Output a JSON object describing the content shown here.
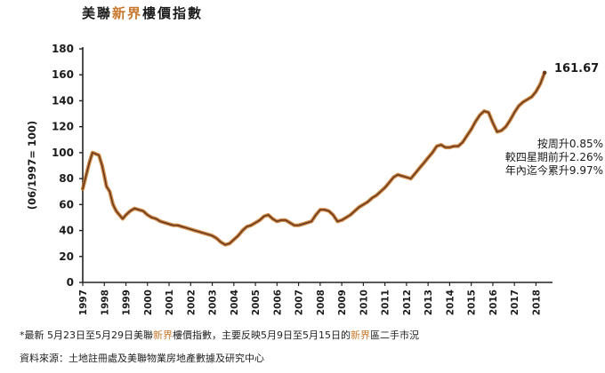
{
  "title": {
    "text_before": "美聯",
    "text_highlight": "新界",
    "text_after": "樓價指數"
  },
  "annotation": {
    "last_value": "161.67",
    "lines": [
      "按周升0.85%",
      "較四星期前升2.26%",
      "年內迄今累升9.97%"
    ]
  },
  "footnote": {
    "before": "*最新 5月23日至5月29日美聯",
    "highlight1": "新界",
    "middle": "樓價指數，主要反映5月9日至5月15日的",
    "highlight2": "新界",
    "after": "區二手市況"
  },
  "source": "資料來源：土地註冊處及美聯物業房地產數據及研究中心",
  "colors": {
    "line_outer": "#c8782c",
    "line_inner": "#6b3a1c",
    "accent": "#c8782c"
  },
  "chart_data": {
    "type": "line",
    "title": "美聯新界樓價指數",
    "ylabel": "(06/1997= 100)",
    "xlabel": "",
    "ylim": [
      0,
      180
    ],
    "yticks": [
      0,
      20,
      40,
      60,
      80,
      100,
      120,
      140,
      160,
      180
    ],
    "xlim": [
      1997.0,
      2018.6
    ],
    "xticks": [
      "1997",
      "1998",
      "1999",
      "2000",
      "2001",
      "2002",
      "2003",
      "2004",
      "2005",
      "2006",
      "2007",
      "2008",
      "2009",
      "2010",
      "2011",
      "2012",
      "2013",
      "2014",
      "2015",
      "2016",
      "2017",
      "2018"
    ],
    "grid": false,
    "series": [
      {
        "x": [
          1997.0,
          1997.15,
          1997.3,
          1997.45,
          1997.6,
          1997.75,
          1997.9,
          1998.0,
          1998.1,
          1998.25,
          1998.4,
          1998.55,
          1998.7,
          1998.85,
          1999.0,
          1999.2,
          1999.4,
          1999.6,
          1999.8,
          2000.0,
          2000.2,
          2000.4,
          2000.6,
          2000.8,
          2001.0,
          2001.2,
          2001.4,
          2001.6,
          2001.8,
          2002.0,
          2002.2,
          2002.4,
          2002.6,
          2002.8,
          2003.0,
          2003.2,
          2003.4,
          2003.6,
          2003.8,
          2004.0,
          2004.2,
          2004.4,
          2004.6,
          2004.8,
          2005.0,
          2005.2,
          2005.4,
          2005.6,
          2005.8,
          2006.0,
          2006.2,
          2006.4,
          2006.6,
          2006.8,
          2007.0,
          2007.2,
          2007.4,
          2007.6,
          2007.8,
          2008.0,
          2008.2,
          2008.4,
          2008.6,
          2008.8,
          2009.0,
          2009.2,
          2009.4,
          2009.6,
          2009.8,
          2010.0,
          2010.2,
          2010.4,
          2010.6,
          2010.8,
          2011.0,
          2011.2,
          2011.4,
          2011.6,
          2011.8,
          2012.0,
          2012.2,
          2012.4,
          2012.6,
          2012.8,
          2013.0,
          2013.2,
          2013.4,
          2013.6,
          2013.8,
          2014.0,
          2014.2,
          2014.4,
          2014.6,
          2014.8,
          2015.0,
          2015.2,
          2015.4,
          2015.6,
          2015.8,
          2016.0,
          2016.2,
          2016.4,
          2016.6,
          2016.8,
          2017.0,
          2017.2,
          2017.4,
          2017.6,
          2017.8,
          2018.0,
          2018.2,
          2018.4
        ],
        "values": [
          72,
          82,
          92,
          100,
          99,
          98,
          90,
          82,
          74,
          70,
          60,
          55,
          52,
          49,
          52,
          55,
          57,
          56,
          55,
          52,
          50,
          49,
          47,
          46,
          45,
          44,
          44,
          43,
          42,
          41,
          40,
          39,
          38,
          37,
          36,
          34,
          31,
          29,
          30,
          33,
          36,
          40,
          43,
          44,
          46,
          48,
          51,
          52,
          49,
          47,
          48,
          48,
          46,
          44,
          44,
          45,
          46,
          47,
          52,
          56,
          56,
          55,
          52,
          47,
          48,
          50,
          52,
          55,
          58,
          60,
          62,
          65,
          67,
          70,
          73,
          77,
          81,
          83,
          82,
          81,
          80,
          84,
          88,
          92,
          96,
          100,
          105,
          106,
          104,
          104,
          105,
          105,
          108,
          113,
          118,
          124,
          129,
          132,
          131,
          123,
          116,
          117,
          120,
          125,
          131,
          136,
          139,
          141,
          143,
          147,
          153,
          161.67
        ]
      }
    ]
  }
}
